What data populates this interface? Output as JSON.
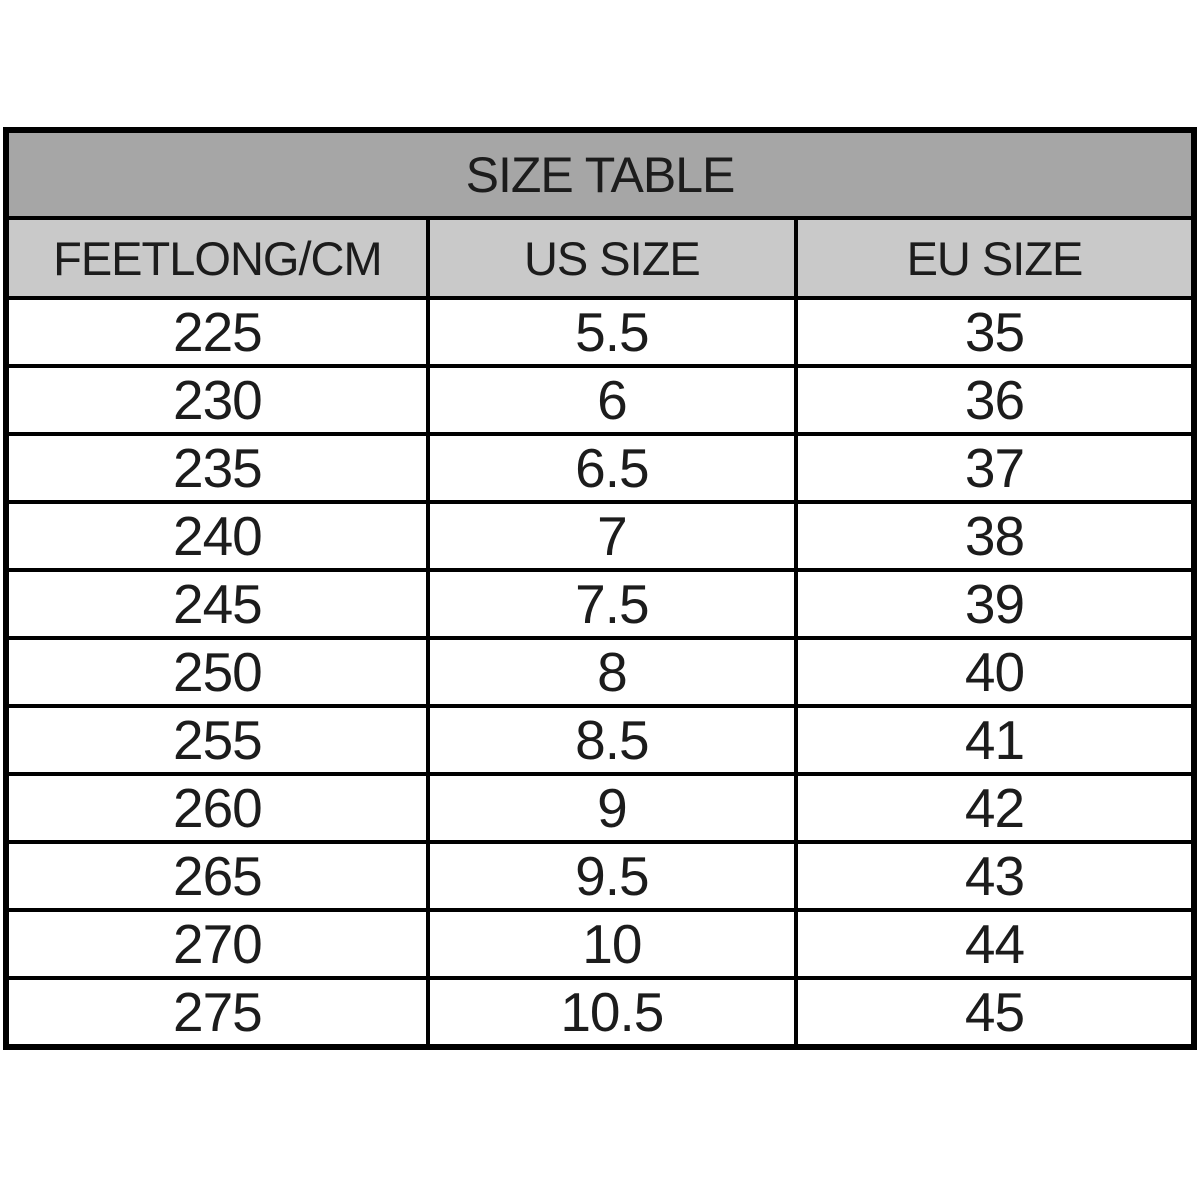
{
  "chart_data": {
    "type": "table",
    "title": "SIZE TABLE",
    "columns": [
      "FEETLONG/CM",
      "US SIZE",
      "EU SIZE"
    ],
    "rows": [
      [
        "225",
        "5.5",
        "35"
      ],
      [
        "230",
        "6",
        "36"
      ],
      [
        "235",
        "6.5",
        "37"
      ],
      [
        "240",
        "7",
        "38"
      ],
      [
        "245",
        "7.5",
        "39"
      ],
      [
        "250",
        "8",
        "40"
      ],
      [
        "255",
        "8.5",
        "41"
      ],
      [
        "260",
        "9",
        "42"
      ],
      [
        "265",
        "9.5",
        "43"
      ],
      [
        "270",
        "10",
        "44"
      ],
      [
        "275",
        "10.5",
        "45"
      ]
    ],
    "colors": {
      "title_bg": "#a6a6a6",
      "header_bg": "#c9c9c9",
      "border": "#000000",
      "text": "#1c1c1c",
      "row_bg": "#ffffff",
      "page_bg": "#ffffff"
    }
  }
}
